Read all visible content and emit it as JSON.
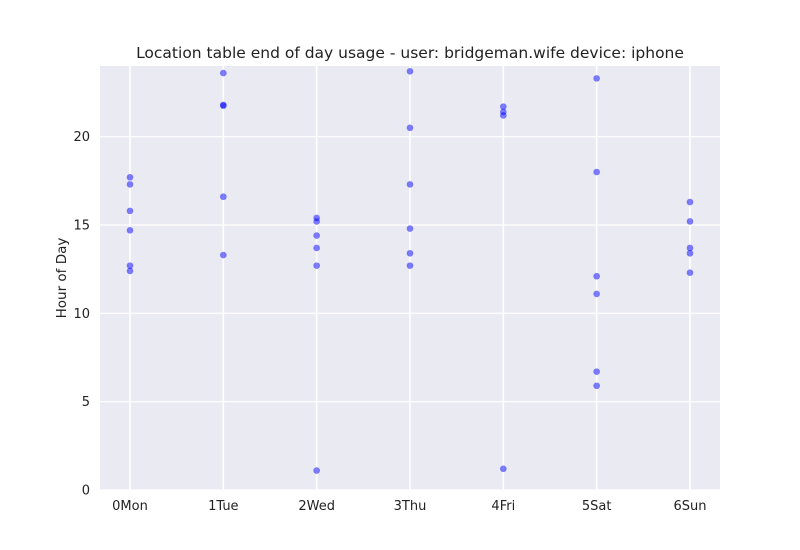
{
  "chart_data": {
    "type": "scatter",
    "title": "Location table end of day usage -  user: bridgeman.wife device: iphone",
    "xlabel": "",
    "ylabel": "Hour of Day",
    "categories": [
      "0Mon",
      "1Tue",
      "2Wed",
      "3Thu",
      "4Fri",
      "5Sat",
      "6Sun"
    ],
    "ylim": [
      0,
      24
    ],
    "yticks": [
      0,
      5,
      10,
      15,
      20
    ],
    "grid": true,
    "point_color": "#0000ff",
    "background_color": "#eaeaf2",
    "series": [
      {
        "points": [
          {
            "x": "0Mon",
            "y": 17.7
          },
          {
            "x": "0Mon",
            "y": 17.3
          },
          {
            "x": "0Mon",
            "y": 15.8
          },
          {
            "x": "0Mon",
            "y": 14.7
          },
          {
            "x": "0Mon",
            "y": 12.7
          },
          {
            "x": "0Mon",
            "y": 12.4
          },
          {
            "x": "1Tue",
            "y": 23.6
          },
          {
            "x": "1Tue",
            "y": 21.8
          },
          {
            "x": "1Tue",
            "y": 21.75
          },
          {
            "x": "1Tue",
            "y": 16.6
          },
          {
            "x": "1Tue",
            "y": 13.3
          },
          {
            "x": "2Wed",
            "y": 15.4
          },
          {
            "x": "2Wed",
            "y": 15.2
          },
          {
            "x": "2Wed",
            "y": 14.4
          },
          {
            "x": "2Wed",
            "y": 13.7
          },
          {
            "x": "2Wed",
            "y": 12.7
          },
          {
            "x": "2Wed",
            "y": 1.1
          },
          {
            "x": "3Thu",
            "y": 23.7
          },
          {
            "x": "3Thu",
            "y": 20.5
          },
          {
            "x": "3Thu",
            "y": 17.3
          },
          {
            "x": "3Thu",
            "y": 14.8
          },
          {
            "x": "3Thu",
            "y": 13.4
          },
          {
            "x": "3Thu",
            "y": 12.7
          },
          {
            "x": "4Fri",
            "y": 21.7
          },
          {
            "x": "4Fri",
            "y": 21.4
          },
          {
            "x": "4Fri",
            "y": 21.2
          },
          {
            "x": "4Fri",
            "y": 1.2
          },
          {
            "x": "5Sat",
            "y": 23.3
          },
          {
            "x": "5Sat",
            "y": 18.0
          },
          {
            "x": "5Sat",
            "y": 12.1
          },
          {
            "x": "5Sat",
            "y": 11.1
          },
          {
            "x": "5Sat",
            "y": 6.7
          },
          {
            "x": "5Sat",
            "y": 5.9
          },
          {
            "x": "6Sun",
            "y": 16.3
          },
          {
            "x": "6Sun",
            "y": 15.2
          },
          {
            "x": "6Sun",
            "y": 13.7
          },
          {
            "x": "6Sun",
            "y": 13.4
          },
          {
            "x": "6Sun",
            "y": 12.3
          }
        ]
      }
    ]
  }
}
